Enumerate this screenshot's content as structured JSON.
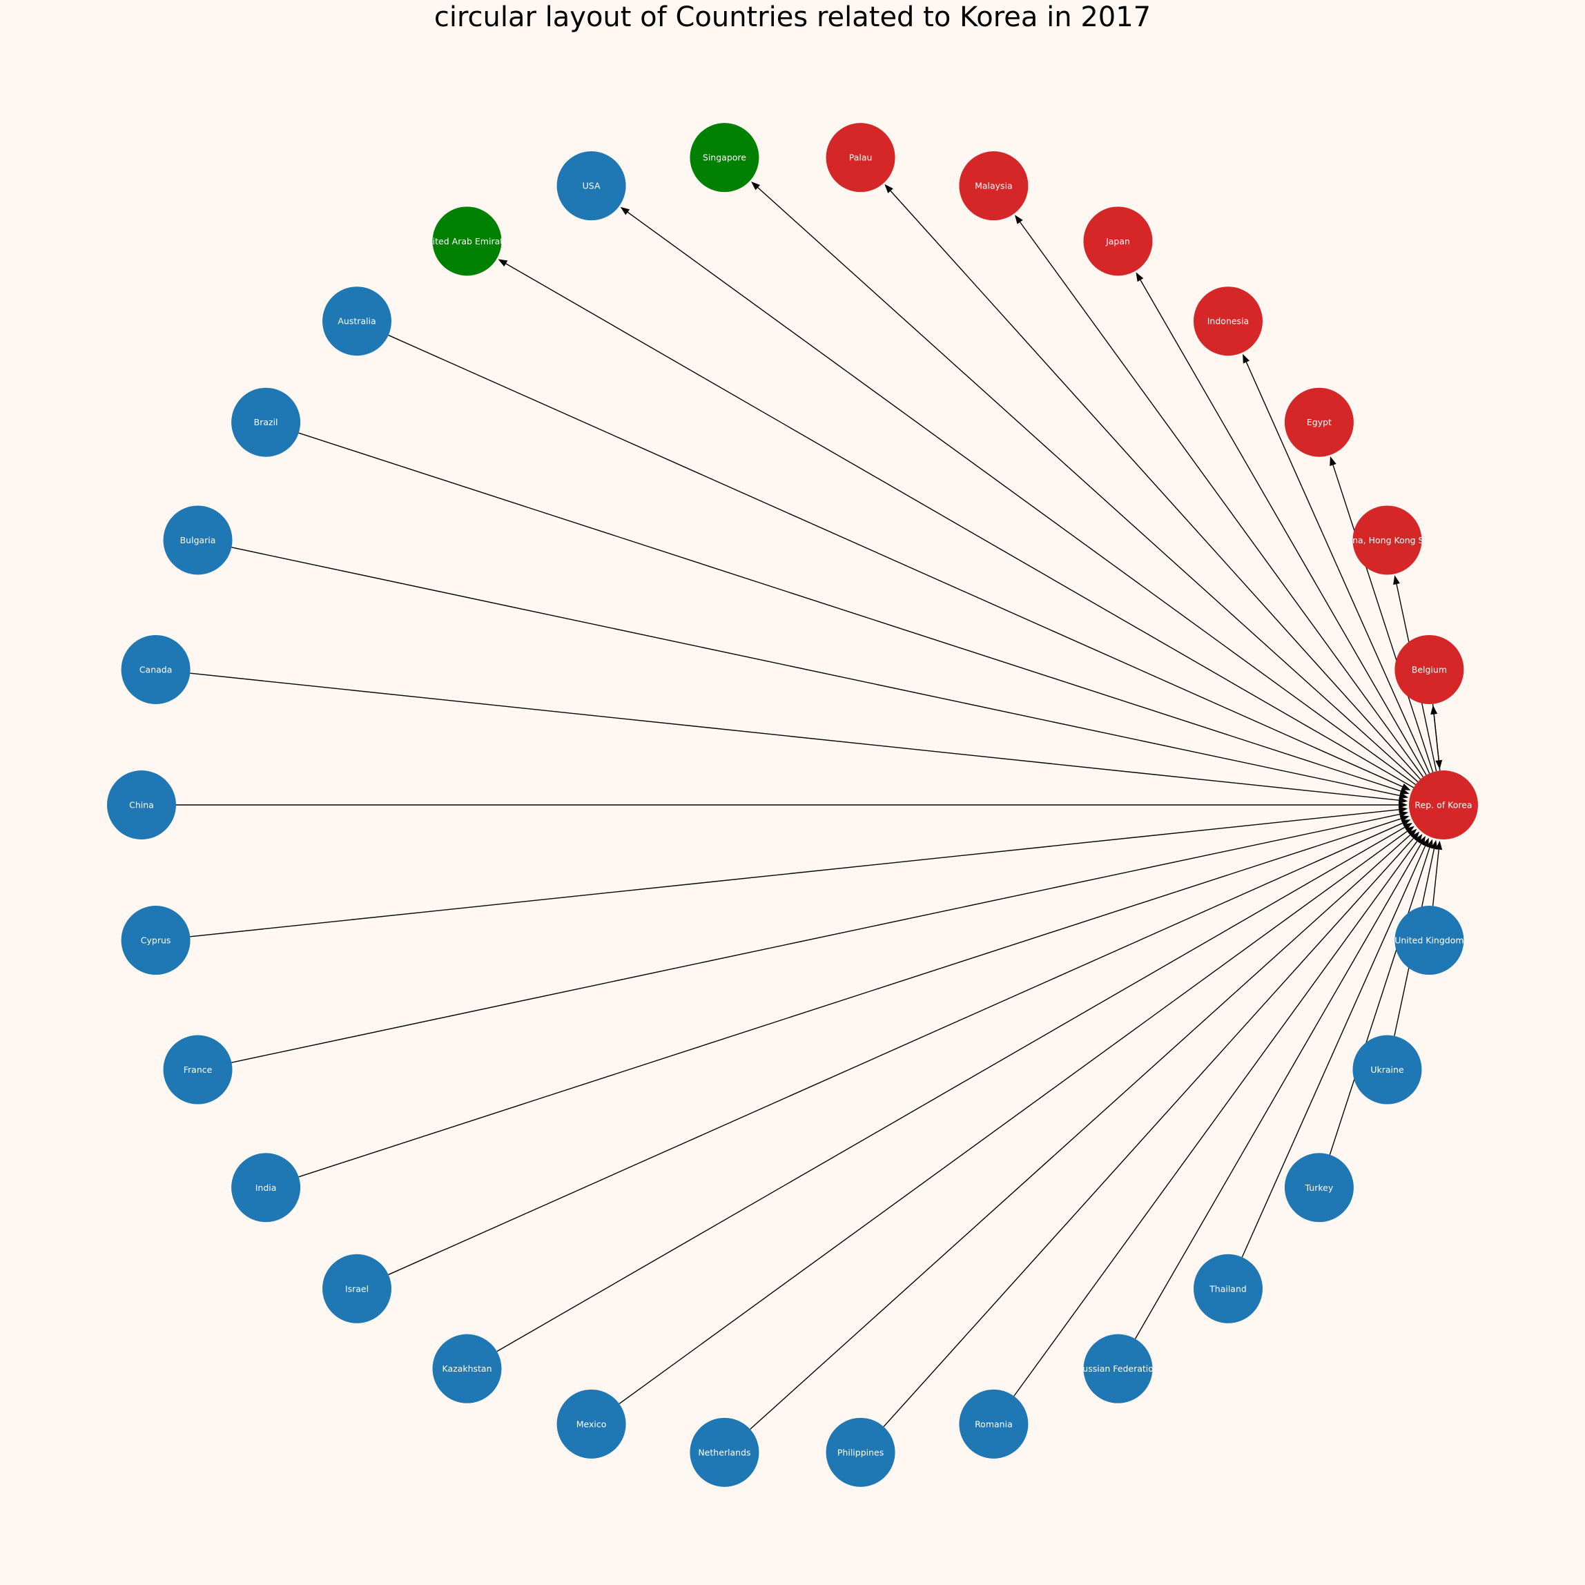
{
  "title": "circular layout of Countries related to Korea in 2017",
  "colors": {
    "background": "#fff7f1",
    "blue": "#1f77b4",
    "red": "#d62728",
    "green": "#008000",
    "edge": "#000000",
    "label": "#ffffff"
  },
  "center": "Rep. of Korea",
  "nodes": [
    {
      "label": "Rep. of Korea",
      "color": "red"
    },
    {
      "label": "Belgium",
      "color": "red"
    },
    {
      "label": "China, Hong Kong SAR",
      "color": "red"
    },
    {
      "label": "Egypt",
      "color": "red"
    },
    {
      "label": "Indonesia",
      "color": "red"
    },
    {
      "label": "Japan",
      "color": "red"
    },
    {
      "label": "Malaysia",
      "color": "red"
    },
    {
      "label": "Palau",
      "color": "red"
    },
    {
      "label": "Singapore",
      "color": "green"
    },
    {
      "label": "USA",
      "color": "blue"
    },
    {
      "label": "United Arab Emirates",
      "color": "green"
    },
    {
      "label": "Australia",
      "color": "blue"
    },
    {
      "label": "Brazil",
      "color": "blue"
    },
    {
      "label": "Bulgaria",
      "color": "blue"
    },
    {
      "label": "Canada",
      "color": "blue"
    },
    {
      "label": "China",
      "color": "blue"
    },
    {
      "label": "Cyprus",
      "color": "blue"
    },
    {
      "label": "France",
      "color": "blue"
    },
    {
      "label": "India",
      "color": "blue"
    },
    {
      "label": "Israel",
      "color": "blue"
    },
    {
      "label": "Kazakhstan",
      "color": "blue"
    },
    {
      "label": "Mexico",
      "color": "blue"
    },
    {
      "label": "Netherlands",
      "color": "blue"
    },
    {
      "label": "Philippines",
      "color": "blue"
    },
    {
      "label": "Romania",
      "color": "blue"
    },
    {
      "label": "Russian Federation",
      "color": "blue"
    },
    {
      "label": "Thailand",
      "color": "blue"
    },
    {
      "label": "Turkey",
      "color": "blue"
    },
    {
      "label": "Ukraine",
      "color": "blue"
    },
    {
      "label": "United Kingdom",
      "color": "blue"
    }
  ],
  "edges": [
    {
      "source": "Rep. of Korea",
      "target": "Belgium"
    },
    {
      "source": "Belgium",
      "target": "Rep. of Korea"
    },
    {
      "source": "Rep. of Korea",
      "target": "China, Hong Kong SAR"
    },
    {
      "source": "Rep. of Korea",
      "target": "Egypt"
    },
    {
      "source": "Rep. of Korea",
      "target": "Indonesia"
    },
    {
      "source": "Rep. of Korea",
      "target": "Japan"
    },
    {
      "source": "Rep. of Korea",
      "target": "Malaysia"
    },
    {
      "source": "Rep. of Korea",
      "target": "Palau"
    },
    {
      "source": "Rep. of Korea",
      "target": "Singapore"
    },
    {
      "source": "Rep. of Korea",
      "target": "USA"
    },
    {
      "source": "Rep. of Korea",
      "target": "United Arab Emirates"
    },
    {
      "source": "Australia",
      "target": "Rep. of Korea"
    },
    {
      "source": "Brazil",
      "target": "Rep. of Korea"
    },
    {
      "source": "Bulgaria",
      "target": "Rep. of Korea"
    },
    {
      "source": "Canada",
      "target": "Rep. of Korea"
    },
    {
      "source": "China",
      "target": "Rep. of Korea"
    },
    {
      "source": "Cyprus",
      "target": "Rep. of Korea"
    },
    {
      "source": "France",
      "target": "Rep. of Korea"
    },
    {
      "source": "India",
      "target": "Rep. of Korea"
    },
    {
      "source": "Israel",
      "target": "Rep. of Korea"
    },
    {
      "source": "Kazakhstan",
      "target": "Rep. of Korea"
    },
    {
      "source": "Mexico",
      "target": "Rep. of Korea"
    },
    {
      "source": "Netherlands",
      "target": "Rep. of Korea"
    },
    {
      "source": "Philippines",
      "target": "Rep. of Korea"
    },
    {
      "source": "Romania",
      "target": "Rep. of Korea"
    },
    {
      "source": "Russian Federation",
      "target": "Rep. of Korea"
    },
    {
      "source": "Thailand",
      "target": "Rep. of Korea"
    },
    {
      "source": "Turkey",
      "target": "Rep. of Korea"
    },
    {
      "source": "Ukraine",
      "target": "Rep. of Korea"
    },
    {
      "source": "United Kingdom",
      "target": "Rep. of Korea"
    }
  ]
}
